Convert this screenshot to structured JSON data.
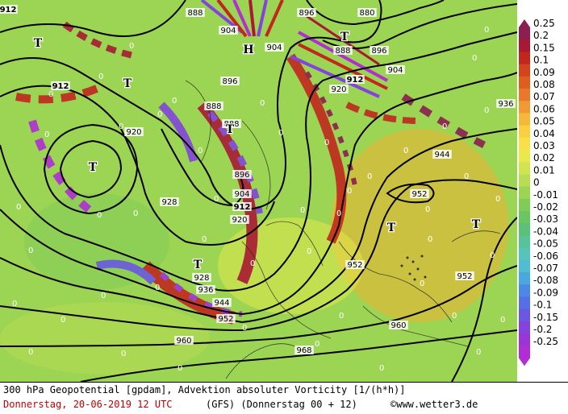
{
  "footer": {
    "line1": "300 hPa Geopotential [gpdam], Advektion absoluter Vorticity [1/(h*h)]",
    "date": "Donnerstag, 20-06-2019  12 UTC",
    "model": "(GFS)  (Donnerstag 00 + 12)",
    "copyright": "©www.wetter3.de"
  },
  "legend": {
    "values": [
      "0.25",
      "0.2",
      "0.15",
      "0.1",
      "0.09",
      "0.08",
      "0.07",
      "0.06",
      "0.05",
      "0.04",
      "0.03",
      "0.02",
      "0.01",
      "0",
      "-0.01",
      "-0.02",
      "-0.03",
      "-0.04",
      "-0.05",
      "-0.06",
      "-0.07",
      "-0.08",
      "-0.09",
      "-0.1",
      "-0.15",
      "-0.2",
      "-0.25"
    ],
    "colors": [
      "#8a1f50",
      "#a81a34",
      "#c0281e",
      "#d2441c",
      "#de5e20",
      "#e8782a",
      "#f09a34",
      "#f6b838",
      "#fad040",
      "#f8e048",
      "#e8ea4c",
      "#d0e450",
      "#b8dc52",
      "#9cd454",
      "#80cc58",
      "#6ac660",
      "#5cc078",
      "#58c298",
      "#56c4ba",
      "#52bcd4",
      "#4aa8e0",
      "#4a8ae4",
      "#5470e4",
      "#6a58e0",
      "#8244dc",
      "#9a36d8",
      "#b02ed4"
    ]
  },
  "map": {
    "heights": [
      {
        "text": "912"
      },
      {
        "text": "888"
      },
      {
        "text": "896"
      },
      {
        "text": "880"
      },
      {
        "text": "904"
      },
      {
        "text": "888"
      },
      {
        "text": "896"
      },
      {
        "text": "904"
      },
      {
        "text": "912"
      },
      {
        "text": "920"
      },
      {
        "text": "936"
      },
      {
        "text": "904"
      },
      {
        "text": "912"
      },
      {
        "text": "920"
      },
      {
        "text": "896"
      },
      {
        "text": "888"
      },
      {
        "text": "888"
      },
      {
        "text": "944"
      },
      {
        "text": "896"
      },
      {
        "text": "904"
      },
      {
        "text": "912"
      },
      {
        "text": "920"
      },
      {
        "text": "952"
      },
      {
        "text": "928"
      },
      {
        "text": "928"
      },
      {
        "text": "936"
      },
      {
        "text": "944"
      },
      {
        "text": "952"
      },
      {
        "text": "952"
      },
      {
        "text": "952"
      },
      {
        "text": "960"
      },
      {
        "text": "960"
      },
      {
        "text": "968"
      }
    ],
    "highs": [
      {
        "text": "H"
      }
    ],
    "lows": [
      {
        "text": "T"
      },
      {
        "text": "T"
      },
      {
        "text": "T"
      },
      {
        "text": "T"
      },
      {
        "text": "T"
      },
      {
        "text": "T"
      },
      {
        "text": "T"
      },
      {
        "text": "T"
      }
    ],
    "zeros": "0"
  }
}
